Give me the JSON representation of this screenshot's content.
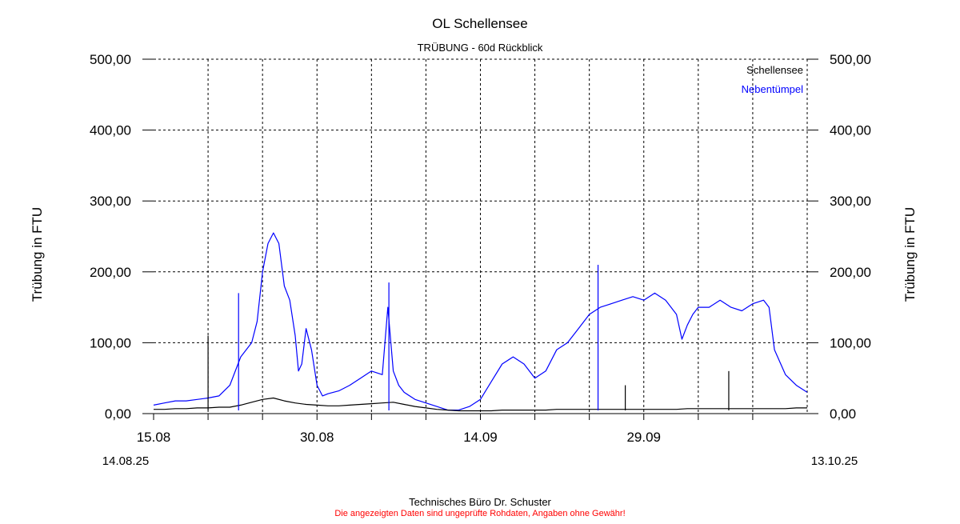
{
  "chart_data": {
    "type": "line",
    "title": "OL Schellensee",
    "subtitle": "TRÜBUNG - 60d Rückblick",
    "ylabel_left": "Trübung in FTU",
    "ylabel_right": "Trübung in FTU",
    "ylim": [
      0,
      500
    ],
    "xlim": [
      0,
      60
    ],
    "yticks": [
      "0,00",
      "100,00",
      "200,00",
      "300,00",
      "400,00",
      "500,00"
    ],
    "ytick_values": [
      0,
      100,
      200,
      300,
      400,
      500
    ],
    "xticks": [
      {
        "day": 0,
        "label": "15.08"
      },
      {
        "day": 5,
        "label": ""
      },
      {
        "day": 10,
        "label": ""
      },
      {
        "day": 15,
        "label": "30.08"
      },
      {
        "day": 20,
        "label": ""
      },
      {
        "day": 25,
        "label": ""
      },
      {
        "day": 30,
        "label": "14.09"
      },
      {
        "day": 35,
        "label": ""
      },
      {
        "day": 40,
        "label": ""
      },
      {
        "day": 45,
        "label": "29.09"
      },
      {
        "day": 50,
        "label": ""
      },
      {
        "day": 55,
        "label": ""
      }
    ],
    "date_start": "14.08.25",
    "date_end": "13.10.25",
    "grid": true,
    "legend_placement": "top-right",
    "series": [
      {
        "name": "Schellensee",
        "color": "#000000",
        "x": [
          0,
          1,
          2,
          3,
          4,
          5,
          6,
          7,
          8,
          9,
          10,
          11,
          12,
          13,
          14,
          15,
          16,
          17,
          18,
          19,
          20,
          21,
          22,
          23,
          24,
          25,
          26,
          27,
          28,
          29,
          30,
          31,
          32,
          33,
          34,
          35,
          36,
          37,
          38,
          39,
          40,
          41,
          42,
          43,
          44,
          45,
          46,
          47,
          48,
          49,
          50,
          51,
          52,
          53,
          54,
          55,
          56,
          57,
          58,
          59,
          60
        ],
        "y": [
          6,
          6,
          7,
          7,
          8,
          8,
          9,
          9,
          12,
          16,
          20,
          22,
          18,
          15,
          13,
          12,
          11,
          11,
          12,
          13,
          14,
          15,
          16,
          13,
          10,
          8,
          6,
          5,
          4,
          4,
          4,
          4,
          5,
          5,
          5,
          5,
          5,
          6,
          6,
          6,
          6,
          6,
          6,
          6,
          6,
          6,
          6,
          6,
          6,
          7,
          7,
          7,
          7,
          7,
          7,
          7,
          7,
          7,
          7,
          8,
          8
        ]
      },
      {
        "name": "Nebentümpel",
        "color": "#0000ff",
        "x": [
          0,
          1,
          2,
          3,
          4,
          5,
          6,
          7,
          8,
          9,
          9.5,
          10,
          10.5,
          11,
          11.5,
          12,
          12.5,
          13,
          13.3,
          13.6,
          14,
          14.5,
          15,
          15.5,
          16,
          17,
          18,
          19,
          20,
          21,
          21.5,
          22,
          22.5,
          23,
          24,
          25,
          26,
          27,
          28,
          29,
          30,
          31,
          32,
          33,
          34,
          35,
          36,
          37,
          38,
          39,
          40,
          41,
          42,
          43,
          44,
          45,
          46,
          47,
          48,
          48.5,
          49,
          49.5,
          50,
          51,
          52,
          53,
          54,
          55,
          56,
          56.5,
          57,
          58,
          59,
          60
        ],
        "y": [
          12,
          15,
          18,
          18,
          20,
          22,
          25,
          40,
          80,
          100,
          130,
          200,
          240,
          255,
          240,
          180,
          160,
          110,
          60,
          70,
          120,
          90,
          40,
          25,
          28,
          32,
          40,
          50,
          60,
          55,
          150,
          60,
          40,
          30,
          20,
          15,
          10,
          5,
          5,
          10,
          20,
          45,
          70,
          80,
          70,
          50,
          60,
          90,
          100,
          120,
          140,
          150,
          155,
          160,
          165,
          160,
          170,
          160,
          140,
          105,
          125,
          140,
          150,
          150,
          160,
          150,
          145,
          155,
          160,
          150,
          90,
          55,
          40,
          30
        ]
      }
    ],
    "spikes": [
      {
        "series": "Schellensee",
        "day": 5,
        "value": 110
      },
      {
        "series": "Schellensee",
        "day": 43.3,
        "value": 40
      },
      {
        "series": "Schellensee",
        "day": 52.8,
        "value": 60
      },
      {
        "series": "Nebentümpel",
        "day": 7.8,
        "value": 170
      },
      {
        "series": "Nebentümpel",
        "day": 21.6,
        "value": 185
      },
      {
        "series": "Nebentümpel",
        "day": 40.8,
        "value": 210
      }
    ]
  },
  "footer": {
    "company": "Technisches Büro Dr. Schuster",
    "disclaimer": "Die angezeigten Daten sind ungeprüfte Rohdaten, Angaben ohne Gewähr!"
  }
}
